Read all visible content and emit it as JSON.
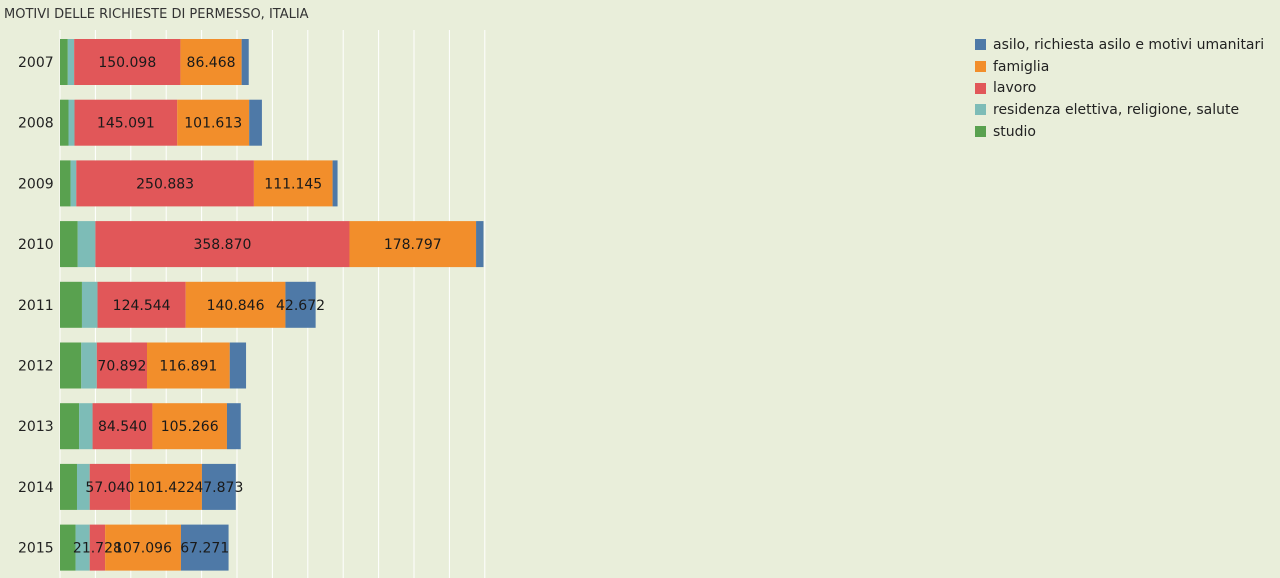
{
  "chart_data": {
    "type": "bar",
    "orientation": "horizontal",
    "stacked": true,
    "title": "MOTIVI DELLE RICHIESTE DI PERMESSO, ITALIA",
    "xlabel": "",
    "ylabel": "",
    "xlim": [
      0,
      600000
    ],
    "grid": true,
    "legend_position": "top-right",
    "categories": [
      "2007",
      "2008",
      "2009",
      "2010",
      "2011",
      "2012",
      "2013",
      "2014",
      "2015"
    ],
    "series": [
      {
        "name": "studio",
        "color": "#59a14f",
        "values": [
          11000,
          12000,
          15000,
          25000,
          31000,
          30000,
          27000,
          24000,
          22000
        ]
      },
      {
        "name": "residenza elettiva, religione, salute",
        "color": "#7dbcb7",
        "values": [
          9000,
          8500,
          8000,
          25000,
          22000,
          22000,
          19000,
          18000,
          20000
        ]
      },
      {
        "name": "lavoro",
        "color": "#e15759",
        "values": [
          150098,
          145091,
          250883,
          358870,
          124544,
          70892,
          84540,
          57040,
          21728
        ]
      },
      {
        "name": "famiglia",
        "color": "#f28e2b",
        "values": [
          86468,
          101613,
          111145,
          178797,
          140846,
          116891,
          105266,
          101422,
          107096
        ]
      },
      {
        "name": "asilo, richiesta asilo e motivi umanitari",
        "color": "#4e79a7",
        "values": [
          10000,
          18000,
          7000,
          10500,
          42672,
          23000,
          19500,
          47873,
          67271
        ]
      }
    ],
    "data_labels": [
      [
        "",
        "",
        "150.098",
        "86.468",
        ""
      ],
      [
        "",
        "",
        "145.091",
        "101.613",
        ""
      ],
      [
        "",
        "",
        "250.883",
        "111.145",
        ""
      ],
      [
        "",
        "",
        "358.870",
        "178.797",
        ""
      ],
      [
        "",
        "",
        "124.544",
        "140.846",
        "42.672"
      ],
      [
        "",
        "",
        "70.892",
        "116.891",
        ""
      ],
      [
        "",
        "",
        "84.540",
        "105.266",
        ""
      ],
      [
        "",
        "",
        "57.040",
        "101.422",
        "47.873"
      ],
      [
        "",
        "",
        "21.728",
        "107.096",
        "67.271"
      ]
    ],
    "legend_order": [
      4,
      3,
      2,
      1,
      0
    ]
  }
}
